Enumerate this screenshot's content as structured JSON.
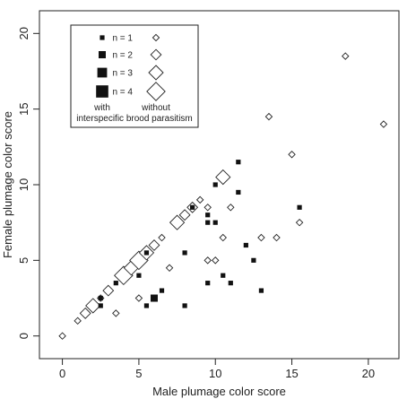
{
  "chart_data": {
    "type": "scatter",
    "xlabel": "Male plumage color score",
    "ylabel": "Female plumage color score",
    "xlim": [
      -1.5,
      22
    ],
    "ylim": [
      -1.5,
      21.5
    ],
    "xticks": [
      0,
      5,
      10,
      15,
      20
    ],
    "yticks": [
      0,
      5,
      10,
      15,
      20
    ],
    "grid": false,
    "legend": {
      "placement": "top-left",
      "entries": [
        {
          "label": "n = 1",
          "n": 1
        },
        {
          "label": "n = 2",
          "n": 2
        },
        {
          "label": "n = 3",
          "n": 3
        },
        {
          "label": "n = 4",
          "n": 4
        }
      ],
      "col_with": "with",
      "col_without": "without",
      "caption": "interspecific brood parasitism"
    },
    "series": [
      {
        "name": "with interspecific brood parasitism",
        "marker": "filled-square",
        "points": [
          {
            "x": 2.5,
            "y": 2,
            "n": 1
          },
          {
            "x": 2.5,
            "y": 2.5,
            "n": 1
          },
          {
            "x": 3.5,
            "y": 3.5,
            "n": 1
          },
          {
            "x": 5,
            "y": 4,
            "n": 1
          },
          {
            "x": 5.5,
            "y": 5.5,
            "n": 1
          },
          {
            "x": 5.5,
            "y": 2,
            "n": 1
          },
          {
            "x": 6,
            "y": 2.5,
            "n": 2
          },
          {
            "x": 6.5,
            "y": 3,
            "n": 1
          },
          {
            "x": 8,
            "y": 5.5,
            "n": 1
          },
          {
            "x": 8,
            "y": 2,
            "n": 1
          },
          {
            "x": 8.5,
            "y": 8.5,
            "n": 1
          },
          {
            "x": 9.5,
            "y": 8,
            "n": 1
          },
          {
            "x": 9.5,
            "y": 7.5,
            "n": 1
          },
          {
            "x": 9.5,
            "y": 3.5,
            "n": 1
          },
          {
            "x": 10,
            "y": 10,
            "n": 1
          },
          {
            "x": 10,
            "y": 7.5,
            "n": 1
          },
          {
            "x": 10.5,
            "y": 4,
            "n": 1
          },
          {
            "x": 11,
            "y": 3.5,
            "n": 1
          },
          {
            "x": 11.5,
            "y": 11.5,
            "n": 1
          },
          {
            "x": 11.5,
            "y": 9.5,
            "n": 1
          },
          {
            "x": 12,
            "y": 6,
            "n": 1
          },
          {
            "x": 12.5,
            "y": 5,
            "n": 1
          },
          {
            "x": 13,
            "y": 3,
            "n": 1
          },
          {
            "x": 15.5,
            "y": 8.5,
            "n": 1
          }
        ]
      },
      {
        "name": "without interspecific brood parasitism",
        "marker": "open-diamond",
        "points": [
          {
            "x": 0,
            "y": 0,
            "n": 1
          },
          {
            "x": 1,
            "y": 1,
            "n": 1
          },
          {
            "x": 1.5,
            "y": 1.5,
            "n": 2
          },
          {
            "x": 2,
            "y": 2,
            "n": 3
          },
          {
            "x": 2.5,
            "y": 2.5,
            "n": 1
          },
          {
            "x": 3,
            "y": 3,
            "n": 2
          },
          {
            "x": 3.5,
            "y": 1.5,
            "n": 1
          },
          {
            "x": 4,
            "y": 4,
            "n": 4
          },
          {
            "x": 4.5,
            "y": 4.5,
            "n": 3
          },
          {
            "x": 5,
            "y": 5,
            "n": 4
          },
          {
            "x": 5,
            "y": 2.5,
            "n": 1
          },
          {
            "x": 5.5,
            "y": 5.5,
            "n": 3
          },
          {
            "x": 6,
            "y": 6,
            "n": 2
          },
          {
            "x": 6.5,
            "y": 6.5,
            "n": 1
          },
          {
            "x": 7,
            "y": 4.5,
            "n": 1
          },
          {
            "x": 7.5,
            "y": 7.5,
            "n": 3
          },
          {
            "x": 8,
            "y": 8,
            "n": 2
          },
          {
            "x": 8.5,
            "y": 8.5,
            "n": 2
          },
          {
            "x": 9,
            "y": 9,
            "n": 1
          },
          {
            "x": 9.5,
            "y": 8.5,
            "n": 1
          },
          {
            "x": 9.5,
            "y": 5,
            "n": 1
          },
          {
            "x": 10,
            "y": 5,
            "n": 1
          },
          {
            "x": 10.5,
            "y": 10.5,
            "n": 3
          },
          {
            "x": 10.5,
            "y": 6.5,
            "n": 1
          },
          {
            "x": 11,
            "y": 8.5,
            "n": 1
          },
          {
            "x": 13,
            "y": 6.5,
            "n": 1
          },
          {
            "x": 13.5,
            "y": 14.5,
            "n": 1
          },
          {
            "x": 14,
            "y": 6.5,
            "n": 1
          },
          {
            "x": 15,
            "y": 12,
            "n": 1
          },
          {
            "x": 15.5,
            "y": 7.5,
            "n": 1
          },
          {
            "x": 18.5,
            "y": 18.5,
            "n": 1
          },
          {
            "x": 21,
            "y": 14,
            "n": 1
          }
        ]
      }
    ]
  }
}
